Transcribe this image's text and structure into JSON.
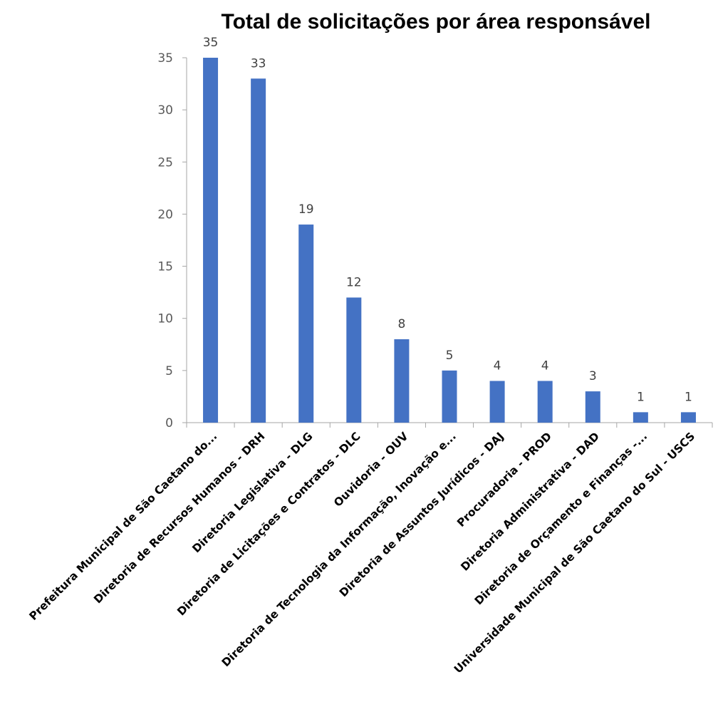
{
  "chart_data": {
    "type": "bar",
    "title": "Total de solicitações por área responsável",
    "xlabel": "",
    "ylabel": "",
    "ylim": [
      0,
      35
    ],
    "yticks": [
      0,
      5,
      10,
      15,
      20,
      25,
      30,
      35
    ],
    "grid": false,
    "legend": "none",
    "bar_color": "#4472C4",
    "categories": [
      "Prefeitura Municipal de São Caetano do...",
      "Diretoria de Recursos Humanos - DRH",
      "Diretoria Legislativa - DLG",
      "Diretoria de Licitações e Contratos - DLC",
      "Ouvidoria - OUV",
      "Diretoria de Tecnologia da Informação, Inovação e...",
      "Diretoria de Assuntos Jurídicos - DAJ",
      "Procuradoria - PROD",
      "Diretoria Administrativa - DAD",
      "Diretoria de Orçamento e Finanças -...",
      "Universidade Municipal de São Caetano do Sul - USCS"
    ],
    "values": [
      35,
      33,
      19,
      12,
      8,
      5,
      4,
      4,
      3,
      1,
      1
    ],
    "data_labels": [
      "35",
      "33",
      "19",
      "12",
      "8",
      "5",
      "4",
      "4",
      "3",
      "1",
      "1"
    ]
  }
}
